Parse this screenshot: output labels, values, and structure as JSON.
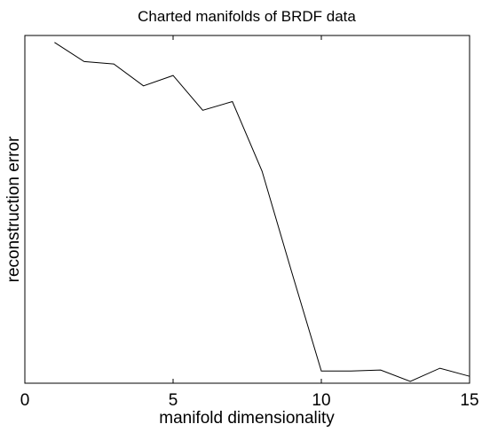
{
  "chart_data": {
    "type": "line",
    "title": "Charted manifolds of BRDF data",
    "xlabel": "manifold dimensionality",
    "ylabel": "reconstruction error",
    "xlim": [
      0,
      15
    ],
    "ylim": [
      0,
      1
    ],
    "xticks": [
      "0",
      "5",
      "10",
      "15"
    ],
    "xtick_values": [
      0,
      5,
      10,
      15
    ],
    "yticks": [],
    "grid": false,
    "series": [
      {
        "x": [
          1,
          2,
          3,
          4,
          5,
          6,
          7,
          8,
          9,
          10,
          11,
          12,
          13,
          14,
          15
        ],
        "values": [
          0.98,
          0.925,
          0.918,
          0.855,
          0.885,
          0.785,
          0.81,
          0.61,
          0.32,
          0.035,
          0.035,
          0.038,
          0.005,
          0.043,
          0.02
        ],
        "color": "#000000"
      }
    ]
  }
}
